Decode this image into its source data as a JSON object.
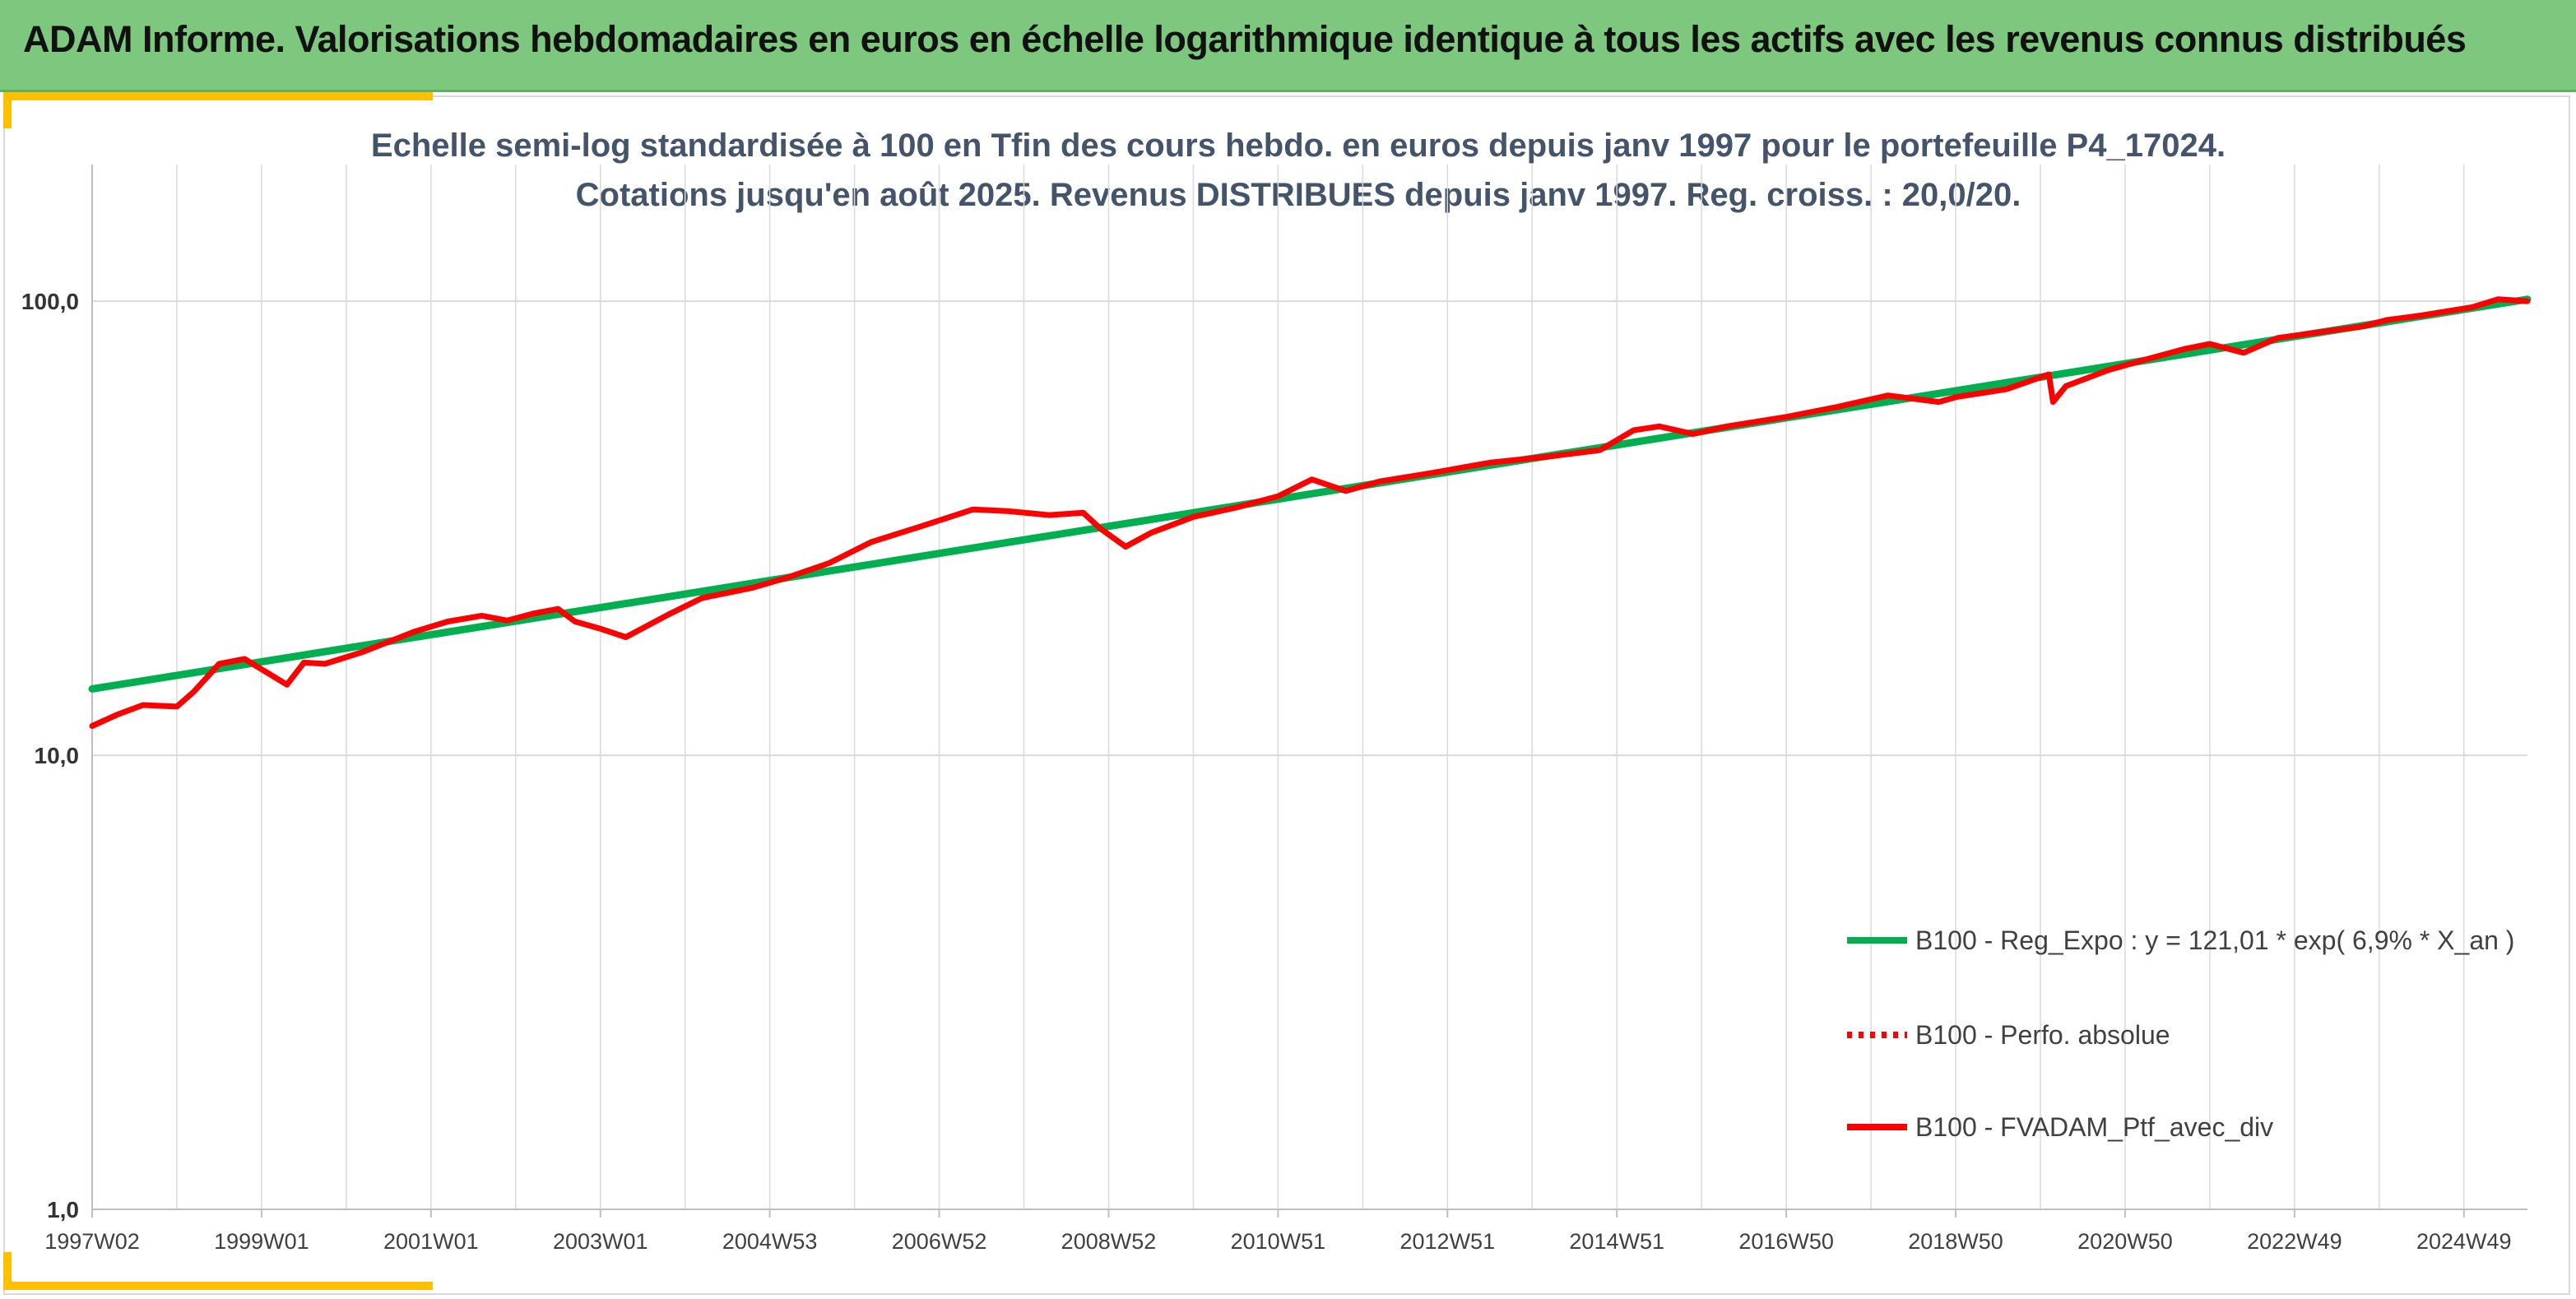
{
  "header": {
    "title": "ADAM Informe. Valorisations hebdomadaires en euros en échelle logarithmique identique à tous les actifs avec les revenus connus distribués"
  },
  "colors": {
    "banner": "#7dc77e",
    "accent_corner": "#ffc000",
    "regression": "#00b050",
    "portfolio": "#ff0000",
    "grid": "#d9d9d9"
  },
  "chart_data": {
    "type": "line",
    "title": "Echelle semi-log standardisée à 100 en Tfin des cours hebdo. en euros depuis janv 1997 pour le portefeuille P4_17024.",
    "subtitle": "Cotations jusqu'en août 2025. Revenus DISTRIBUES depuis janv 1997. Reg. croiss. : 20,0/20.",
    "yscale": "log",
    "ylim": [
      1,
      200
    ],
    "yticks": [
      1,
      10,
      100
    ],
    "ytick_labels": [
      "1,0",
      "10,0",
      "100,0"
    ],
    "xlim": [
      1997.0,
      2025.75
    ],
    "x_tick_labels": [
      "1997W02",
      "1999W01",
      "2001W01",
      "2003W01",
      "2004W53",
      "2006W52",
      "2008W52",
      "2010W51",
      "2012W51",
      "2014W51",
      "2016W50",
      "2018W50",
      "2020W50",
      "2022W49",
      "2024W49"
    ],
    "x_tick_years": [
      1997.0,
      1999.0,
      2001.0,
      2003.0,
      2005.0,
      2007.0,
      2009.0,
      2011.0,
      2013.0,
      2015.0,
      2017.0,
      2019.0,
      2021.0,
      2023.0,
      2025.0
    ],
    "grid": "vertical",
    "legend_position": "bottom-right",
    "series": [
      {
        "name": "B100 - Reg_Expo : y = 121,01 * exp( 6,9% *  X_an )",
        "color": "#00b050",
        "style": "solid",
        "x": [
          1997.0,
          2025.75
        ],
        "y": [
          14.0,
          101.0
        ]
      },
      {
        "name": "B100 - Perfo. absolue",
        "color": "#ff0000",
        "style": "dotted",
        "x": [],
        "y": []
      },
      {
        "name": "B100 - FVADAM_Ptf_avec_div",
        "color": "#ff0000",
        "style": "solid",
        "x": [
          1997.0,
          1997.3,
          1997.6,
          1998.0,
          1998.2,
          1998.5,
          1998.8,
          1999.3,
          1999.5,
          1999.75,
          2000.2,
          2000.8,
          2001.2,
          2001.6,
          2001.9,
          2002.2,
          2002.5,
          2002.7,
          2003.0,
          2003.3,
          2003.8,
          2004.2,
          2004.8,
          2005.2,
          2005.7,
          2006.2,
          2006.8,
          2007.4,
          2007.8,
          2008.3,
          2008.7,
          2008.9,
          2009.2,
          2009.5,
          2010.0,
          2010.5,
          2011.0,
          2011.4,
          2011.8,
          2012.2,
          2012.8,
          2013.5,
          2014.2,
          2014.8,
          2015.2,
          2015.5,
          2015.9,
          2016.3,
          2017.0,
          2017.6,
          2018.2,
          2018.8,
          2019.0,
          2019.6,
          2020.1,
          2020.15,
          2020.3,
          2020.8,
          2021.2,
          2021.7,
          2022.0,
          2022.4,
          2022.8,
          2023.3,
          2023.8,
          2024.1,
          2024.5,
          2024.8,
          2025.1,
          2025.4,
          2025.75
        ],
        "y": [
          11.6,
          12.3,
          12.9,
          12.8,
          13.8,
          15.9,
          16.3,
          14.3,
          16.0,
          15.9,
          16.9,
          18.7,
          19.7,
          20.3,
          19.8,
          20.5,
          21.0,
          19.7,
          19.0,
          18.2,
          20.4,
          22.2,
          23.4,
          24.6,
          26.5,
          29.5,
          32.0,
          34.8,
          34.5,
          33.8,
          34.2,
          31.6,
          28.8,
          30.9,
          33.5,
          35.1,
          37.2,
          40.5,
          38.2,
          40.1,
          41.8,
          44.1,
          45.5,
          47.0,
          52.0,
          53.0,
          51.0,
          53.0,
          55.6,
          58.5,
          62.0,
          60.0,
          61.5,
          64.0,
          69.0,
          60.0,
          65.0,
          70.5,
          74.0,
          78.5,
          80.5,
          77.0,
          83.0,
          85.5,
          88.0,
          91.0,
          93.0,
          95.0,
          97.0,
          101.0,
          100.0
        ]
      }
    ]
  }
}
